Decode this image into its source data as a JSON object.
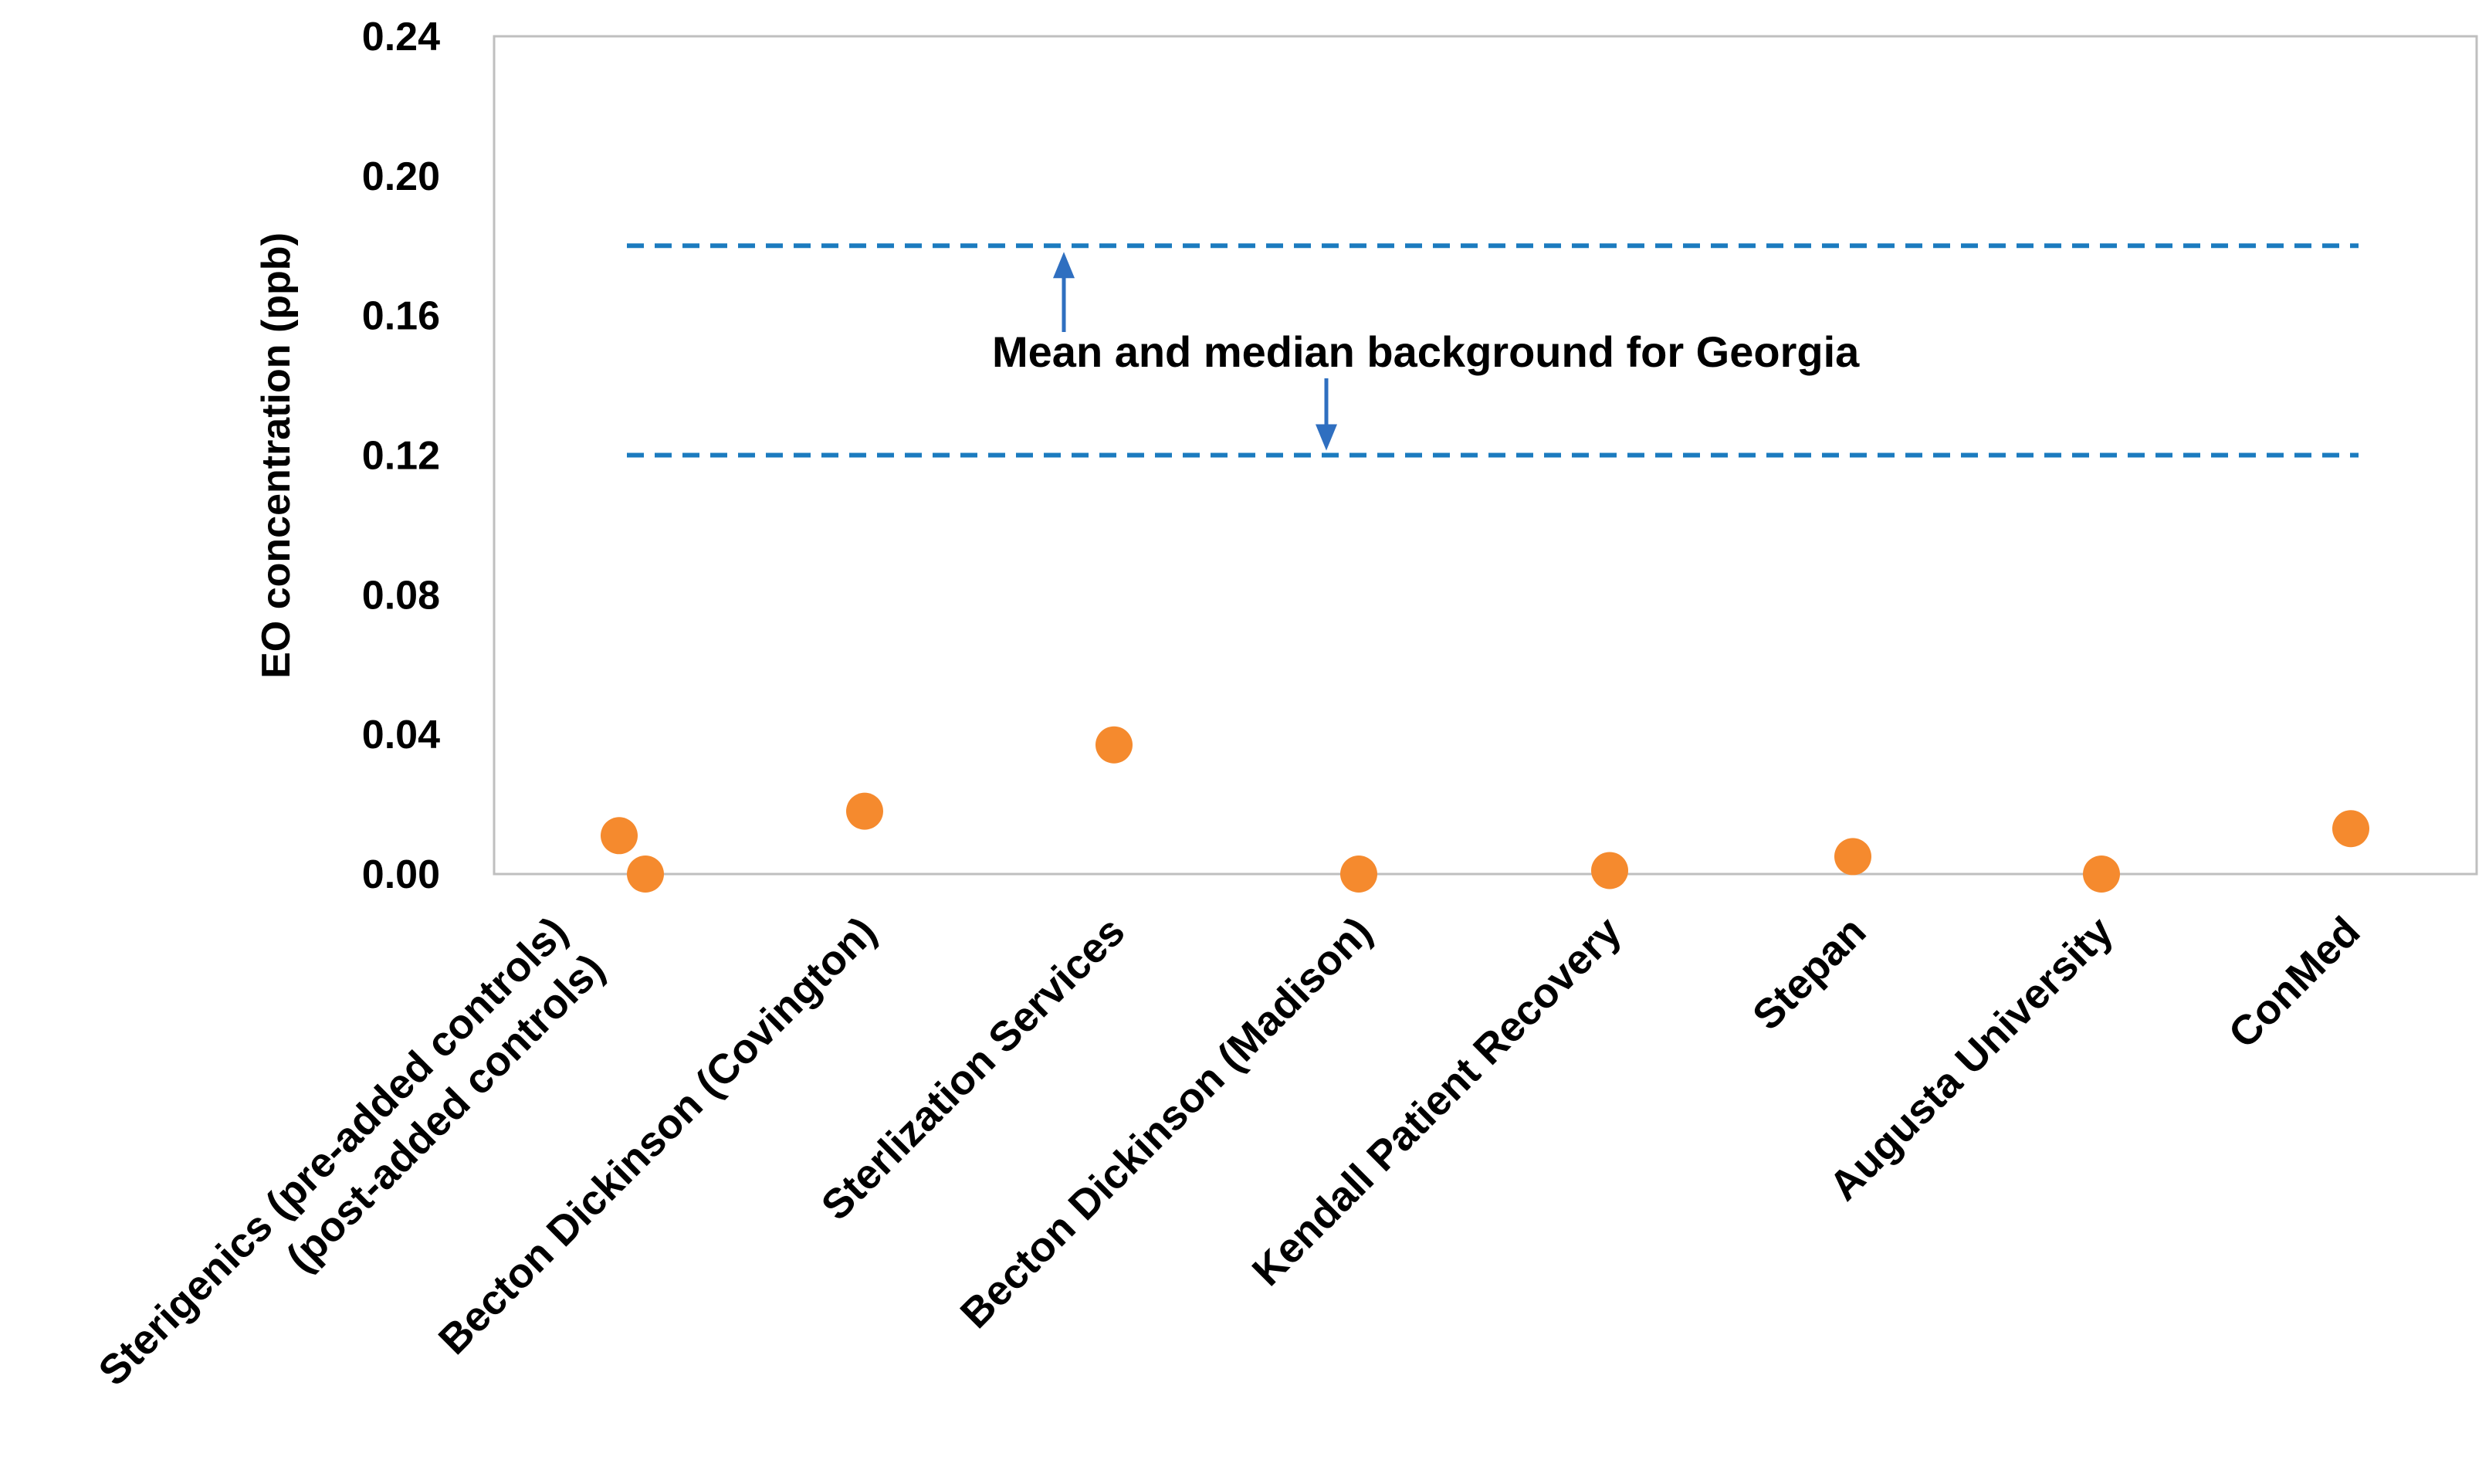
{
  "chart_data": {
    "type": "scatter",
    "title": "",
    "xlabel": "",
    "ylabel": "EO concentration (ppb)",
    "ylim": [
      0,
      0.24
    ],
    "yticks": [
      "0.00",
      "0.04",
      "0.08",
      "0.12",
      "0.16",
      "0.20",
      "0.24"
    ],
    "grid": false,
    "legend": "none",
    "categories": [
      "Sterigenics (pre-added controls)",
      "(post-added controls)",
      "Becton Dickinson (Covington)",
      "Sterlization Services",
      "Becton Dickinson (Madison)",
      "Kendall Patient Recovery",
      "Stepan",
      "Augusta University",
      "ConMed"
    ],
    "series": [
      {
        "values": [
          0.011,
          0.0,
          0.018,
          0.037,
          0.0,
          0.001,
          0.005,
          0.0,
          0.013
        ],
        "color": "#F58A2E"
      }
    ],
    "reference_lines": [
      {
        "value": 0.18,
        "style": "dashed",
        "color": "#1B7BBF"
      },
      {
        "value": 0.12,
        "style": "dashed",
        "color": "#1B7BBF"
      }
    ],
    "annotation": {
      "text": "Mean and median background for Georgia",
      "arrow_color": "#2F6FC0"
    },
    "colors": {
      "point": "#F58A2E",
      "reference_line": "#1B7BBF",
      "arrow": "#2F6FC0",
      "plot_border": "#BFBFBF"
    }
  }
}
